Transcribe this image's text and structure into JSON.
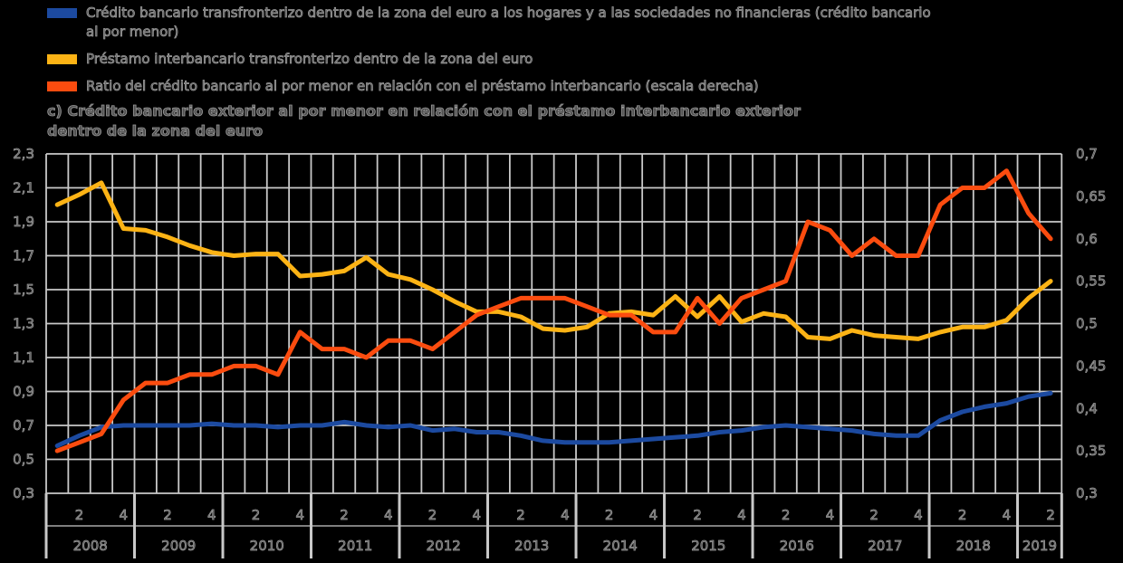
{
  "legend": [
    {
      "label": "Crédito bancario transfronterizo dentro de la zona del euro a los hogares y a las sociedades no financieras (crédito bancario al por menor)",
      "color": "#1c4aa0"
    },
    {
      "label": "Préstamo interbancario transfronterizo dentro de la zona del euro",
      "color": "#fcb315"
    },
    {
      "label": "Ratio del crédito bancario al por menor en relación con el préstamo interbancario (escala derecha)",
      "color": "#fb4c0f"
    }
  ],
  "title": {
    "line1": "c) Crédito bancario exterior al por menor en relación con el préstamo interbancario exterior",
    "line2": "dentro de la zona del euro"
  },
  "chart_data": {
    "type": "line",
    "frequency": "quarterly",
    "x_start": "2008Q1",
    "x_end": "2019Q2",
    "years": [
      "2008",
      "2009",
      "2010",
      "2011",
      "2012",
      "2013",
      "2014",
      "2015",
      "2016",
      "2017",
      "2018",
      "2019"
    ],
    "quarter_tick_labels": [
      "2",
      "4"
    ],
    "grid": true,
    "left_axis": {
      "min": 0.3,
      "max": 2.3,
      "tick_step": 0.2,
      "labels": [
        "2,3",
        "2,1",
        "1,9",
        "1,7",
        "1,5",
        "1,3",
        "1,1",
        "0,9",
        "0,7",
        "0,5",
        "0,3"
      ]
    },
    "right_axis": {
      "min": 0.3,
      "max": 0.7,
      "tick_step": 0.05,
      "labels": [
        "0,7",
        "0,65",
        "0,6",
        "0,55",
        "0,5",
        "0,45",
        "0,4",
        "0,35",
        "0,3"
      ]
    },
    "series": [
      {
        "name": "Crédito bancario transfronterizo dentro de la zona del euro a los hogares y a las sociedades no financieras (crédito bancario al por menor)",
        "axis": "left",
        "color": "#1c4aa0",
        "values": [
          0.58,
          0.64,
          0.69,
          0.7,
          0.7,
          0.7,
          0.7,
          0.71,
          0.7,
          0.7,
          0.69,
          0.7,
          0.7,
          0.72,
          0.7,
          0.69,
          0.7,
          0.67,
          0.68,
          0.66,
          0.66,
          0.64,
          0.61,
          0.6,
          0.6,
          0.6,
          0.61,
          0.62,
          0.63,
          0.64,
          0.66,
          0.67,
          0.69,
          0.7,
          0.69,
          0.68,
          0.67,
          0.65,
          0.64,
          0.64,
          0.73,
          0.78,
          0.81,
          0.83,
          0.87,
          0.89
        ]
      },
      {
        "name": "Préstamo interbancario transfronterizo dentro de la zona del euro",
        "axis": "left",
        "color": "#fcb315",
        "values": [
          2.0,
          2.06,
          2.13,
          1.86,
          1.85,
          1.81,
          1.76,
          1.72,
          1.7,
          1.71,
          1.71,
          1.58,
          1.59,
          1.61,
          1.69,
          1.59,
          1.56,
          1.5,
          1.43,
          1.37,
          1.37,
          1.34,
          1.27,
          1.26,
          1.28,
          1.36,
          1.37,
          1.35,
          1.46,
          1.34,
          1.46,
          1.31,
          1.36,
          1.34,
          1.22,
          1.21,
          1.26,
          1.23,
          1.22,
          1.21,
          1.25,
          1.28,
          1.28,
          1.32,
          1.45,
          1.55
        ]
      },
      {
        "name": "Ratio del crédito bancario al por menor en relación con el préstamo interbancario (escala derecha)",
        "axis": "right",
        "color": "#fb4c0f",
        "values": [
          0.35,
          0.36,
          0.37,
          0.41,
          0.43,
          0.43,
          0.44,
          0.44,
          0.45,
          0.45,
          0.44,
          0.49,
          0.47,
          0.47,
          0.46,
          0.48,
          0.48,
          0.47,
          0.49,
          0.51,
          0.52,
          0.53,
          0.53,
          0.53,
          0.52,
          0.51,
          0.51,
          0.49,
          0.49,
          0.53,
          0.5,
          0.53,
          0.54,
          0.55,
          0.62,
          0.61,
          0.58,
          0.6,
          0.58,
          0.58,
          0.64,
          0.66,
          0.66,
          0.68,
          0.63,
          0.6
        ]
      }
    ]
  }
}
